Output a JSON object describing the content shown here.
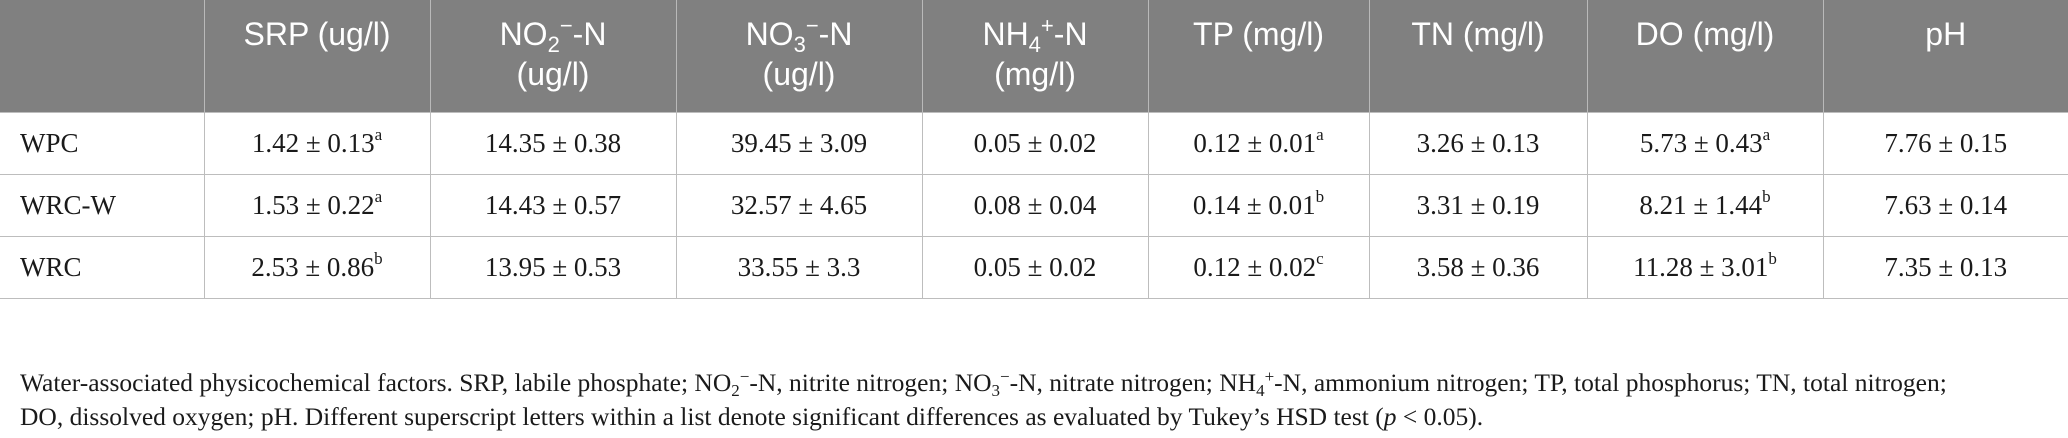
{
  "table": {
    "headers": [
      {
        "main": ""
      },
      {
        "main": "SRP (ug/l)"
      },
      {
        "pre": "NO",
        "sub": "2",
        "sup": "−",
        "post": "-N",
        "line2": "(ug/l)"
      },
      {
        "pre": "NO",
        "sub": "3",
        "sup": "−",
        "post": "-N",
        "line2": "(ug/l)"
      },
      {
        "pre": "NH",
        "sub": "4",
        "sup": "+",
        "post": "-N",
        "line2": "(mg/l)"
      },
      {
        "main": "TP (mg/l)"
      },
      {
        "main": "TN (mg/l)"
      },
      {
        "main": "DO (mg/l)"
      },
      {
        "main": "pH"
      }
    ],
    "rows": [
      {
        "name": "WPC",
        "cells": [
          {
            "v": "1.42 ± 0.13",
            "s": "a"
          },
          {
            "v": "14.35 ± 0.38",
            "s": ""
          },
          {
            "v": "39.45 ± 3.09",
            "s": ""
          },
          {
            "v": "0.05 ± 0.02",
            "s": ""
          },
          {
            "v": "0.12 ± 0.01",
            "s": "a"
          },
          {
            "v": "3.26 ± 0.13",
            "s": ""
          },
          {
            "v": "5.73 ± 0.43",
            "s": "a"
          },
          {
            "v": "7.76 ± 0.15",
            "s": ""
          }
        ]
      },
      {
        "name": "WRC-W",
        "cells": [
          {
            "v": "1.53 ± 0.22",
            "s": "a"
          },
          {
            "v": "14.43 ± 0.57",
            "s": ""
          },
          {
            "v": "32.57 ± 4.65",
            "s": ""
          },
          {
            "v": "0.08 ± 0.04",
            "s": ""
          },
          {
            "v": "0.14 ± 0.01",
            "s": "b"
          },
          {
            "v": "3.31 ± 0.19",
            "s": ""
          },
          {
            "v": "8.21 ± 1.44",
            "s": "b"
          },
          {
            "v": "7.63 ± 0.14",
            "s": ""
          }
        ]
      },
      {
        "name": "WRC",
        "cells": [
          {
            "v": "2.53 ± 0.86",
            "s": "b"
          },
          {
            "v": "13.95 ± 0.53",
            "s": ""
          },
          {
            "v": "33.55 ± 3.3",
            "s": ""
          },
          {
            "v": "0.05 ± 0.02",
            "s": ""
          },
          {
            "v": "0.12 ± 0.02",
            "s": "c"
          },
          {
            "v": "3.58 ± 0.36",
            "s": ""
          },
          {
            "v": "11.28 ± 3.01",
            "s": "b"
          },
          {
            "v": "7.35 ± 0.13",
            "s": ""
          }
        ]
      }
    ]
  },
  "footnote": {
    "p1": "Water-associated physicochemical factors. SRP, labile phosphate; NO",
    "s1": "2",
    "u1": "−",
    "p2": "-N, nitrite nitrogen; NO",
    "s2": "3",
    "u2": "−",
    "p3": "-N, nitrate nitrogen; NH",
    "s3": "4",
    "u3": "+",
    "p4": "-N, ammonium nitrogen; TP, total phosphorus; TN, total nitrogen;",
    "p5": "DO, dissolved oxygen; pH. Different superscript letters within a list denote significant differences as evaluated by Tukey’s HSD test (",
    "italic": "p",
    "p6": " < 0.05)."
  }
}
